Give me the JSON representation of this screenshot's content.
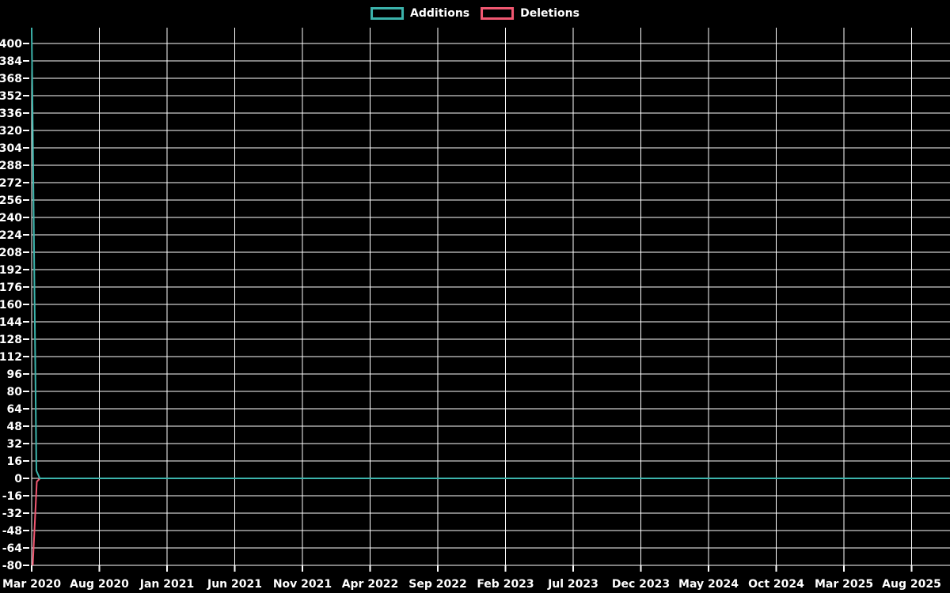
{
  "legend": {
    "items": [
      {
        "label": "Additions",
        "color": "#3cb4ac"
      },
      {
        "label": "Deletions",
        "color": "#f25872"
      }
    ]
  },
  "chart_data": {
    "type": "line",
    "title": "",
    "background_color": "#000000",
    "grid_color": "#ffffff",
    "text_color": "#ffffff",
    "grid": true,
    "legend_position": "top-center",
    "x_axis": {
      "tick_labels": [
        "Mar 2020",
        "Aug 2020",
        "Jan 2021",
        "Jun 2021",
        "Nov 2021",
        "Apr 2022",
        "Sep 2022",
        "Feb 2023",
        "Jul 2023",
        "Dec 2023",
        "May 2024",
        "Oct 2024",
        "Mar 2025",
        "Aug 2025"
      ],
      "months_between_ticks": 5,
      "start_month": "Mar 2020",
      "visible_month_span": 67.8
    },
    "y_axis": {
      "min": -80,
      "max": 414,
      "tick_step": 16,
      "tick_labels": [
        "400",
        "384",
        "368",
        "352",
        "336",
        "320",
        "304",
        "288",
        "272",
        "256",
        "240",
        "224",
        "208",
        "192",
        "176",
        "160",
        "144",
        "128",
        "112",
        "96",
        "80",
        "64",
        "48",
        "32",
        "16",
        "0",
        "-16",
        "-32",
        "-48",
        "-64",
        "-80"
      ]
    },
    "series": [
      {
        "name": "Additions",
        "color": "#3cb4ac",
        "points": [
          {
            "x_months_from_start": 0,
            "value": 416,
            "clipped": true
          },
          {
            "x_months_from_start": 0.35,
            "value": 7
          },
          {
            "x_months_from_start": 0.6,
            "value": 0
          },
          {
            "x_months_from_start": 67.8,
            "value": 0
          }
        ],
        "note": "initial spike exceeds top of plot (clipped above 414); flat at 0 afterwards"
      },
      {
        "name": "Deletions",
        "color": "#f25872",
        "points": [
          {
            "x_months_from_start": 0.08,
            "value": -84,
            "clipped": true
          },
          {
            "x_months_from_start": 0.38,
            "value": -3
          },
          {
            "x_months_from_start": 0.62,
            "value": 0
          },
          {
            "x_months_from_start": 67.8,
            "value": 0
          }
        ],
        "note": "initial spike reaches bottom of plot (clipped at -80); flat at 0 afterwards"
      }
    ]
  }
}
